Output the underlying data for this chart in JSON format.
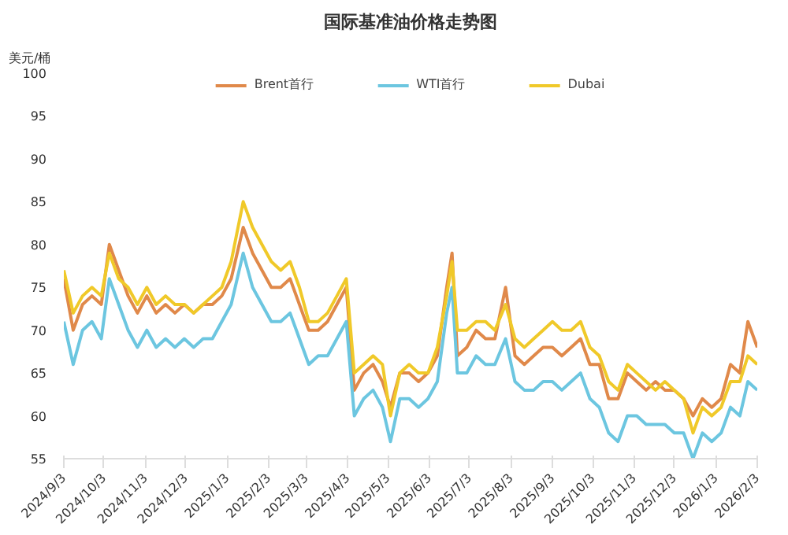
{
  "chart_data": {
    "type": "line",
    "title": "国际基准油价格走势图",
    "ylabel": "美元/桶",
    "x": [
      "2024-09-03",
      "2024-09-10",
      "2024-09-17",
      "2024-09-24",
      "2024-10-01",
      "2024-10-07",
      "2024-10-14",
      "2024-10-21",
      "2024-10-28",
      "2024-11-04",
      "2024-11-11",
      "2024-11-18",
      "2024-11-25",
      "2024-12-02",
      "2024-12-09",
      "2024-12-16",
      "2024-12-23",
      "2024-12-30",
      "2025-01-06",
      "2025-01-15",
      "2025-01-22",
      "2025-01-29",
      "2025-02-05",
      "2025-02-12",
      "2025-02-19",
      "2025-02-26",
      "2025-03-05",
      "2025-03-12",
      "2025-03-19",
      "2025-03-26",
      "2025-04-02",
      "2025-04-08",
      "2025-04-15",
      "2025-04-22",
      "2025-04-29",
      "2025-05-05",
      "2025-05-12",
      "2025-05-19",
      "2025-05-26",
      "2025-06-02",
      "2025-06-09",
      "2025-06-16",
      "2025-06-20",
      "2025-06-24",
      "2025-07-01",
      "2025-07-08",
      "2025-07-15",
      "2025-07-22",
      "2025-07-30",
      "2025-08-06",
      "2025-08-13",
      "2025-08-20",
      "2025-08-27",
      "2025-09-03",
      "2025-09-10",
      "2025-09-17",
      "2025-09-24",
      "2025-10-01",
      "2025-10-08",
      "2025-10-15",
      "2025-10-22",
      "2025-10-29",
      "2025-11-05",
      "2025-11-12",
      "2025-11-19",
      "2025-11-26",
      "2025-12-03",
      "2025-12-10",
      "2025-12-17",
      "2025-12-24",
      "2025-12-31",
      "2026-01-07",
      "2026-01-14",
      "2026-01-21",
      "2026-01-27",
      "2026-02-03"
    ],
    "series": [
      {
        "name": "Brent首行",
        "color": "#e0894a",
        "values": [
          76,
          70,
          73,
          74,
          73,
          80,
          77,
          74,
          72,
          74,
          72,
          73,
          72,
          73,
          72,
          73,
          73,
          74,
          76,
          82,
          79,
          77,
          75,
          75,
          76,
          73,
          70,
          70,
          71,
          73,
          75,
          63,
          65,
          66,
          64,
          61,
          65,
          65,
          64,
          65,
          67,
          75,
          79,
          67,
          68,
          70,
          69,
          69,
          75,
          67,
          66,
          67,
          68,
          68,
          67,
          68,
          69,
          66,
          66,
          62,
          62,
          65,
          64,
          63,
          64,
          63,
          63,
          62,
          60,
          62,
          61,
          62,
          66,
          65,
          71,
          68
        ]
      },
      {
        "name": "WTI首行",
        "color": "#6cc6e0",
        "values": [
          71,
          66,
          70,
          71,
          69,
          76,
          73,
          70,
          68,
          70,
          68,
          69,
          68,
          69,
          68,
          69,
          69,
          71,
          73,
          79,
          75,
          73,
          71,
          71,
          72,
          69,
          66,
          67,
          67,
          69,
          71,
          60,
          62,
          63,
          61,
          57,
          62,
          62,
          61,
          62,
          64,
          72,
          75,
          65,
          65,
          67,
          66,
          66,
          69,
          64,
          63,
          63,
          64,
          64,
          63,
          64,
          65,
          62,
          61,
          58,
          57,
          60,
          60,
          59,
          59,
          59,
          58,
          58,
          55,
          58,
          57,
          58,
          61,
          60,
          64,
          63
        ]
      },
      {
        "name": "Dubai",
        "color": "#f0c929",
        "values": [
          77,
          72,
          74,
          75,
          74,
          79,
          76,
          75,
          73,
          75,
          73,
          74,
          73,
          73,
          72,
          73,
          74,
          75,
          78,
          85,
          82,
          80,
          78,
          77,
          78,
          75,
          71,
          71,
          72,
          74,
          76,
          65,
          66,
          67,
          66,
          60,
          65,
          66,
          65,
          65,
          68,
          74,
          78,
          70,
          70,
          71,
          71,
          70,
          73,
          69,
          68,
          69,
          70,
          71,
          70,
          70,
          71,
          68,
          67,
          64,
          63,
          66,
          65,
          64,
          63,
          64,
          63,
          62,
          58,
          61,
          60,
          61,
          64,
          64,
          67,
          66
        ]
      }
    ],
    "ylim": [
      55,
      100
    ],
    "yticks": [
      55,
      60,
      65,
      70,
      75,
      80,
      85,
      90,
      95,
      100
    ],
    "xlim": [
      "2024-09-03",
      "2026-02-03"
    ],
    "xticks": [
      {
        "value": "2024-09-03",
        "label": "2024/9/3"
      },
      {
        "value": "2024-10-03",
        "label": "2024/10/3"
      },
      {
        "value": "2024-11-03",
        "label": "2024/11/3"
      },
      {
        "value": "2024-12-03",
        "label": "2024/12/3"
      },
      {
        "value": "2025-01-03",
        "label": "2025/1/3"
      },
      {
        "value": "2025-02-03",
        "label": "2025/2/3"
      },
      {
        "value": "2025-03-03",
        "label": "2025/3/3"
      },
      {
        "value": "2025-04-03",
        "label": "2025/4/3"
      },
      {
        "value": "2025-05-03",
        "label": "2025/5/3"
      },
      {
        "value": "2025-06-03",
        "label": "2025/6/3"
      },
      {
        "value": "2025-07-03",
        "label": "2025/7/3"
      },
      {
        "value": "2025-08-03",
        "label": "2025/8/3"
      },
      {
        "value": "2025-09-03",
        "label": "2025/9/3"
      },
      {
        "value": "2025-10-03",
        "label": "2025/10/3"
      },
      {
        "value": "2025-11-03",
        "label": "2025/11/3"
      },
      {
        "value": "2025-12-03",
        "label": "2025/12/3"
      },
      {
        "value": "2026-01-03",
        "label": "2026/1/3"
      },
      {
        "value": "2026-02-03",
        "label": "2026/2/3"
      }
    ],
    "legend": "top"
  }
}
